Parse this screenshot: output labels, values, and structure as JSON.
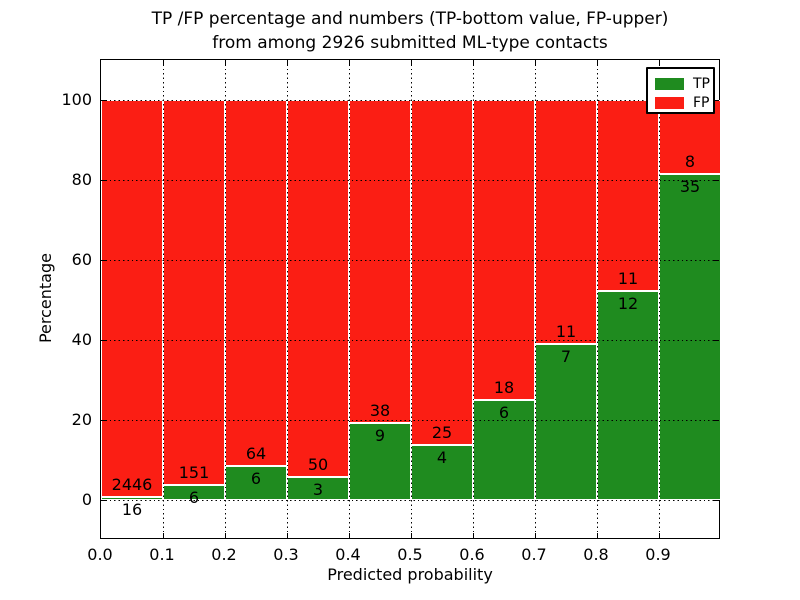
{
  "title": {
    "line1": "TP /FP percentage and numbers (TP-bottom value, FP-upper)",
    "line2": "from among 2926 submitted ML-type contacts"
  },
  "chart_data": {
    "type": "bar",
    "stacked": true,
    "normalized": "each bin scaled to 100%",
    "title": "TP /FP percentage and numbers (TP-bottom value, FP-upper) from among 2926 submitted ML-type contacts",
    "xlabel": "Predicted probability",
    "ylabel": "Percentage",
    "total_contacts": 2926,
    "bins": [
      "0.0-0.1",
      "0.1-0.2",
      "0.2-0.3",
      "0.3-0.4",
      "0.4-0.5",
      "0.5-0.6",
      "0.6-0.7",
      "0.7-0.8",
      "0.8-0.9",
      "0.9-1.0"
    ],
    "x_tick_labels": [
      "0.0",
      "0.1",
      "0.2",
      "0.3",
      "0.4",
      "0.5",
      "0.6",
      "0.7",
      "0.8",
      "0.9"
    ],
    "y_tick_values": [
      0,
      20,
      40,
      60,
      80,
      100
    ],
    "y_tick_labels": [
      "0",
      "20",
      "40",
      "60",
      "80",
      "100"
    ],
    "xlim": [
      0.0,
      1.0
    ],
    "ylim": [
      -10,
      110
    ],
    "grid": "dotted black on both axes",
    "series": [
      {
        "name": "TP",
        "color": "#1f8b1f",
        "counts": [
          16,
          6,
          6,
          3,
          9,
          4,
          6,
          7,
          12,
          35
        ]
      },
      {
        "name": "FP",
        "color": "#fb1e14",
        "counts": [
          2446,
          151,
          64,
          50,
          38,
          25,
          18,
          11,
          11,
          8
        ]
      }
    ],
    "tp_percent_of_bin": [
      0.65,
      3.82,
      8.57,
      5.66,
      19.15,
      13.79,
      25.0,
      38.89,
      52.17,
      81.4
    ],
    "legend": {
      "position": "upper right",
      "entries": [
        {
          "label": "TP",
          "color": "#1f8b1f"
        },
        {
          "label": "FP",
          "color": "#fb1e14"
        }
      ]
    }
  }
}
